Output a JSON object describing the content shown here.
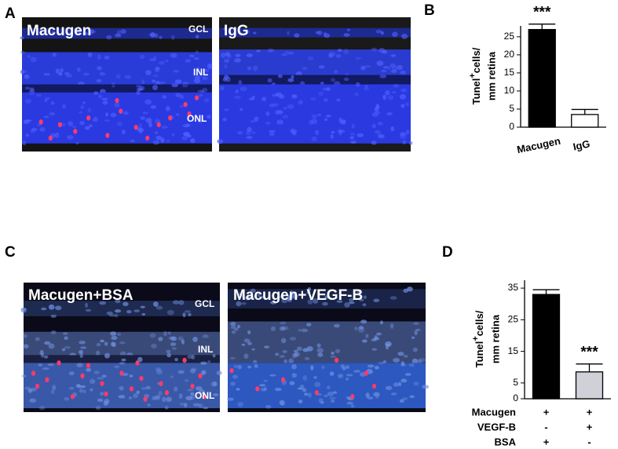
{
  "panel_labels": [
    "A",
    "B",
    "C",
    "D"
  ],
  "images": [
    {
      "label": "Macugen",
      "layers": [
        "GCL",
        "INL",
        "ONL"
      ]
    },
    {
      "label": "IgG"
    },
    {
      "label": "Macugen+BSA",
      "layers": [
        "GCL",
        "INL",
        "ONL"
      ]
    },
    {
      "label": "Macugen+VEGF-B"
    }
  ],
  "chart_data": [
    {
      "type": "bar",
      "ylabel_main": "Tunel",
      "ylabel_sup": "+",
      "ylabel_rest": "cells/",
      "ylabel_line2": "mm retina",
      "categories": [
        "Macugen",
        "IgG"
      ],
      "values": [
        27,
        3.5
      ],
      "errors": [
        1.5,
        1.4
      ],
      "colors": [
        "#000000",
        "#ffffff"
      ],
      "significance": [
        "***",
        null
      ],
      "ylim": [
        0,
        28
      ],
      "yticks": [
        0,
        5,
        10,
        15,
        20,
        25
      ]
    },
    {
      "type": "bar",
      "ylabel_main": "Tunel",
      "ylabel_sup": "+",
      "ylabel_rest": "cells/",
      "ylabel_line2": "mm retina",
      "categories": [
        null,
        null
      ],
      "values": [
        33,
        8.5
      ],
      "errors": [
        1.5,
        2.5
      ],
      "colors": [
        "#000000",
        "#d0d0d8"
      ],
      "significance": [
        null,
        "***"
      ],
      "ylim": [
        0,
        37.5
      ],
      "yticks": [
        0,
        5,
        15,
        25,
        35
      ],
      "conditions": [
        {
          "name": "Macugen",
          "values": [
            "+",
            "+"
          ]
        },
        {
          "name": "VEGF-B",
          "values": [
            "-",
            "+"
          ]
        },
        {
          "name": "BSA",
          "values": [
            "+",
            "-"
          ]
        }
      ]
    }
  ]
}
